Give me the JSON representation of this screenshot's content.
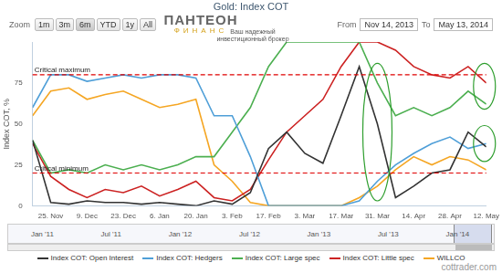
{
  "chart_data": {
    "type": "line",
    "title": "Gold: Index COT",
    "y_label": "Index COT, %",
    "categories": [
      null,
      "25. Nov",
      null,
      "9. Dec",
      null,
      "23. Dec",
      null,
      "6. Jan",
      null,
      "20. Jan",
      null,
      "3. Feb",
      null,
      "17. Feb",
      null,
      "3. Mar",
      null,
      "17. Mar",
      null,
      "31. Mar",
      null,
      "14. Apr",
      null,
      "28. Apr",
      null,
      "12. May"
    ],
    "series": [
      {
        "name": "Index COT: Open Interest",
        "color": "#333333",
        "values": [
          40,
          2,
          1,
          3,
          2,
          2,
          1,
          2,
          1,
          0,
          3,
          1,
          8,
          35,
          45,
          32,
          26,
          55,
          85,
          50,
          5,
          12,
          20,
          22,
          45,
          36
        ]
      },
      {
        "name": "Index COT: Hedgers",
        "color": "#4f9fd8",
        "values": [
          60,
          80,
          80,
          76,
          78,
          80,
          78,
          80,
          80,
          78,
          55,
          55,
          30,
          0,
          0,
          0,
          0,
          0,
          3,
          15,
          25,
          32,
          38,
          42,
          35,
          38
        ]
      },
      {
        "name": "Index COT: Large spec",
        "color": "#4caf50",
        "values": [
          40,
          20,
          22,
          20,
          25,
          22,
          25,
          22,
          25,
          30,
          30,
          45,
          60,
          85,
          100,
          100,
          100,
          100,
          100,
          75,
          55,
          60,
          55,
          60,
          70,
          62
        ]
      },
      {
        "name": "Index COT: Little spec",
        "color": "#cc2222",
        "values": [
          38,
          18,
          10,
          5,
          10,
          8,
          12,
          6,
          10,
          15,
          5,
          3,
          10,
          28,
          45,
          55,
          65,
          85,
          100,
          100,
          95,
          85,
          80,
          78,
          85,
          75
        ]
      },
      {
        "name": "WILLCO",
        "color": "#f5a623",
        "values": [
          55,
          70,
          72,
          65,
          68,
          70,
          65,
          60,
          62,
          65,
          25,
          15,
          2,
          0,
          0,
          0,
          0,
          0,
          5,
          12,
          22,
          30,
          25,
          30,
          28,
          22
        ]
      }
    ],
    "ylim": [
      0,
      100
    ],
    "yticks": [
      0,
      25,
      50,
      75
    ],
    "grid": false,
    "legend": "bottom",
    "annotations": [
      {
        "label": "Critical maximum",
        "value": 80,
        "color": "#e00000"
      },
      {
        "label": "Critical minimum",
        "value": 20,
        "color": "#e00000"
      }
    ]
  },
  "toolbar": {
    "zoom_label": "Zoom",
    "buttons": [
      "1m",
      "3m",
      "6m",
      "YTD",
      "1y",
      "All"
    ],
    "active": "6m",
    "from_label": "From",
    "from": "Nov 14, 2013",
    "to_label": "To",
    "to": "May 13, 2014"
  },
  "logo": {
    "name": "ПАНТЕОН",
    "sub": "ФИНАНС",
    "tagline": [
      "Ваш надежный",
      "инвестиционный брокер"
    ]
  },
  "navigator": {
    "labels": [
      "Jan '11",
      "Jul '11",
      "Jan '12",
      "Jul '12",
      "Jan '13",
      "Jul '13",
      "Jan '14"
    ]
  },
  "watermark": "cottrader.com"
}
